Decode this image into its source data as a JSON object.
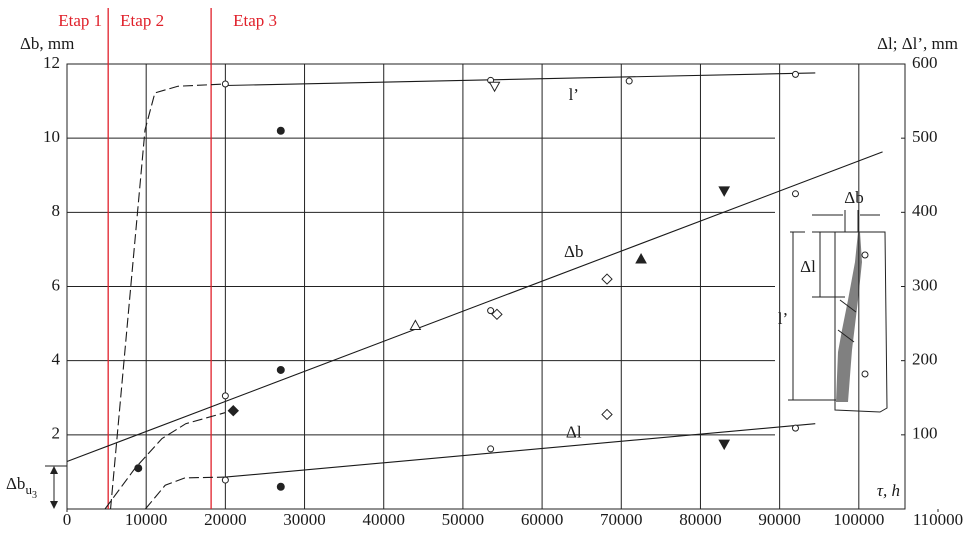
{
  "chart_data": {
    "type": "scatter",
    "y_label": "Δb, mm",
    "y2_label": "Δl; Δl’, mm",
    "x_label": "τ, h",
    "xlim": [
      0,
      110000
    ],
    "xticks": [
      0,
      10000,
      20000,
      30000,
      40000,
      50000,
      60000,
      70000,
      80000,
      90000,
      100000,
      110000
    ],
    "ylim": [
      0,
      12
    ],
    "yticks": [
      2,
      4,
      6,
      8,
      10,
      12
    ],
    "y2lim": [
      0,
      600
    ],
    "y2ticks": [
      100,
      200,
      300,
      400,
      500,
      600
    ],
    "grid": true,
    "stages": {
      "boundaries": [
        5200,
        18200
      ],
      "labels": [
        "Etap 1",
        "Etap 2",
        "Etap 3"
      ],
      "color": "#e0202a"
    },
    "series": [
      {
        "name": "l’",
        "axis": "y2",
        "color": "#1a1a1a",
        "x": [
          20000,
          53500,
          71000,
          92000
        ],
        "values": [
          573,
          578,
          577,
          586
        ],
        "fit": {
          "x": [
            20000,
            94500
          ],
          "values": [
            571,
            588
          ]
        },
        "early": {
          "x": [
            5500,
            9850,
            11100,
            14000,
            20000
          ],
          "values": [
            0,
            511,
            561,
            570,
            573
          ]
        }
      },
      {
        "name": "Δb",
        "axis": "y",
        "color": "#1a1a1a",
        "x": [
          20000,
          53500,
          92000
        ],
        "values": [
          3.05,
          5.35,
          8.5
        ],
        "fit": {
          "x": [
            0,
            103000
          ],
          "values": [
            1.28,
            9.63
          ]
        },
        "early": {
          "x": [
            4800,
            8600,
            12000,
            15000,
            20000
          ],
          "values": [
            0,
            1.1,
            1.9,
            2.3,
            2.6
          ]
        }
      },
      {
        "name": "Δl",
        "axis": "y2",
        "color": "#1a1a1a",
        "x": [
          20000,
          53500,
          92000
        ],
        "values": [
          39,
          81,
          109
        ],
        "fit": {
          "x": [
            20000,
            94500
          ],
          "values": [
            43,
            115
          ]
        },
        "early": {
          "x": [
            9900,
            12400,
            14900,
            20000
          ],
          "values": [
            0,
            32,
            42,
            43
          ]
        }
      }
    ],
    "markers": [
      {
        "shape": "filled-circle",
        "x": [
          27000,
          27000,
          9000,
          27000
        ],
        "values": [
          10.2,
          3.75,
          1.1,
          0.6
        ]
      },
      {
        "shape": "open-triangle-down",
        "x": [
          54000
        ],
        "values": [
          11.4
        ]
      },
      {
        "shape": "filled-triangle-down",
        "x": [
          83000,
          83000
        ],
        "values": [
          8.58,
          1.75
        ]
      },
      {
        "shape": "filled-triangle-up",
        "x": [
          72500
        ],
        "values": [
          6.74
        ]
      },
      {
        "shape": "open-triangle-up",
        "x": [
          44000
        ],
        "values": [
          4.95
        ]
      },
      {
        "shape": "open-diamond",
        "x": [
          54300,
          68200,
          68200
        ],
        "values": [
          5.25,
          6.2,
          2.55
        ]
      },
      {
        "shape": "filled-diamond",
        "x": [
          21000
        ],
        "values": [
          2.65
        ]
      }
    ],
    "annotation": {
      "base": "Δb",
      "sub": "u",
      "subsub": "3"
    },
    "inset_labels": [
      "Δb",
      "Δl",
      "l’"
    ]
  }
}
